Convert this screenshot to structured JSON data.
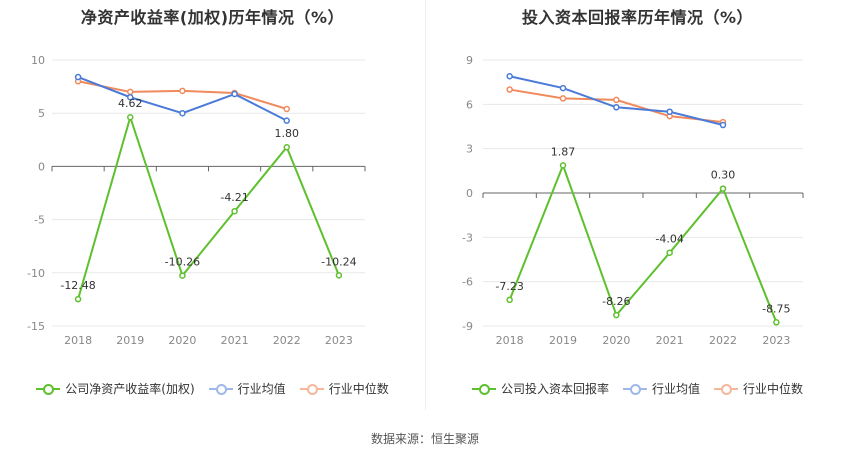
{
  "source": "数据来源：恒生聚源",
  "colors": {
    "company": "#5fc02e",
    "avg": "#4a7bd8",
    "median": "#f08a5d"
  },
  "chart_data": [
    {
      "type": "line",
      "title": "净资产收益率(加权)历年情况（%）",
      "categories": [
        "2018",
        "2019",
        "2020",
        "2021",
        "2022",
        "2023"
      ],
      "ylim": [
        -15,
        10
      ],
      "yticks": [
        10,
        5,
        0,
        -5,
        -10,
        -15
      ],
      "legend_position": "bottom",
      "series": [
        {
          "name": "公司净资产收益率(加权)",
          "values": [
            -12.48,
            4.62,
            -10.26,
            -4.21,
            1.8,
            -10.24
          ],
          "labels": [
            "-12.48",
            "4.62",
            "-10.26",
            "-4.21",
            "1.80",
            "-10.24"
          ]
        },
        {
          "name": "行业均值",
          "values": [
            8.4,
            6.5,
            5.0,
            6.8,
            4.3,
            null
          ]
        },
        {
          "name": "行业中位数",
          "values": [
            8.0,
            7.0,
            7.1,
            6.9,
            5.4,
            null
          ]
        }
      ]
    },
    {
      "type": "line",
      "title": "投入资本回报率历年情况（%）",
      "categories": [
        "2018",
        "2019",
        "2020",
        "2021",
        "2022",
        "2023"
      ],
      "ylim": [
        -9,
        9
      ],
      "yticks": [
        9,
        6,
        3,
        0,
        -3,
        -6,
        -9
      ],
      "legend_position": "bottom",
      "series": [
        {
          "name": "公司投入资本回报率",
          "values": [
            -7.23,
            1.87,
            -8.26,
            -4.04,
            0.3,
            -8.75
          ],
          "labels": [
            "-7.23",
            "1.87",
            "-8.26",
            "-4.04",
            "0.30",
            "-8.75"
          ]
        },
        {
          "name": "行业均值",
          "values": [
            7.9,
            7.1,
            5.8,
            5.5,
            4.6,
            null
          ]
        },
        {
          "name": "行业中位数",
          "values": [
            7.0,
            6.4,
            6.3,
            5.2,
            4.8,
            null
          ]
        }
      ]
    }
  ]
}
